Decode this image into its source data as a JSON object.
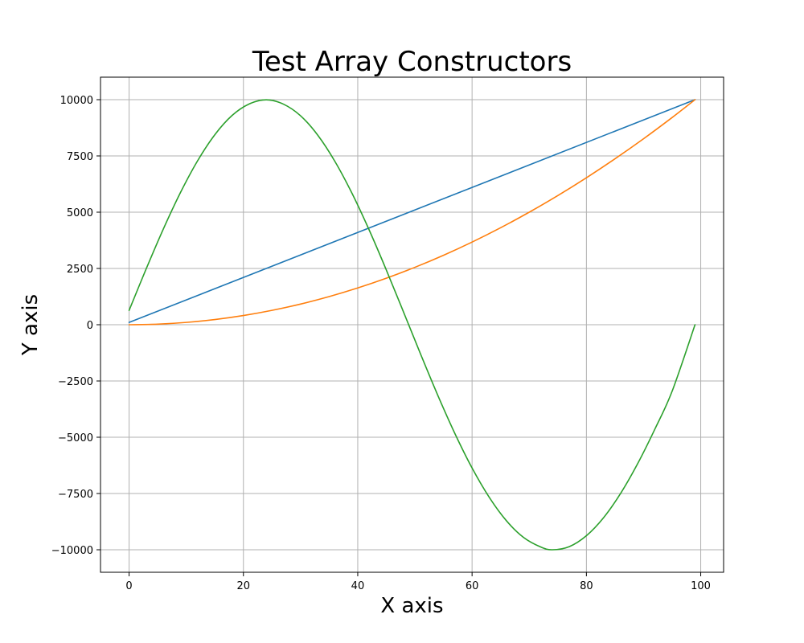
{
  "chart_data": {
    "type": "line",
    "title": "Test Array Constructors",
    "xlabel": "X axis",
    "ylabel": "Y axis",
    "xlim": [
      -5,
      104
    ],
    "ylim": [
      -11000,
      11000
    ],
    "xticks": [
      0,
      20,
      40,
      60,
      80,
      100
    ],
    "yticks": [
      10000,
      7500,
      5000,
      2500,
      0,
      -2500,
      -5000,
      -7500,
      -10000
    ],
    "ytick_labels": [
      "10000",
      "7500",
      "5000",
      "2500",
      "0",
      "−2500",
      "−5000",
      "−7500",
      "−10000"
    ],
    "xtick_labels": [
      "0",
      "20",
      "40",
      "60",
      "80",
      "100"
    ],
    "grid": true,
    "series": [
      {
        "color": "#1f77b4",
        "x": [
          0,
          99
        ],
        "y": [
          101,
          10000
        ]
      },
      {
        "color": "#ff7f0e",
        "x": [
          0,
          5,
          10,
          15,
          20,
          25,
          30,
          35,
          40,
          45,
          50,
          55,
          60,
          65,
          70,
          75,
          80,
          85,
          90,
          95,
          99
        ],
        "y": [
          0,
          26,
          102,
          230,
          408,
          638,
          918,
          1250,
          1632,
          2066,
          2551,
          3086,
          3673,
          4311,
          5000,
          5739,
          6530,
          7372,
          8264,
          9208,
          10000
        ]
      },
      {
        "color": "#2ca02c",
        "x": [
          0,
          3,
          6,
          9,
          12,
          15,
          18,
          21,
          24,
          27,
          30,
          33,
          36,
          39,
          42,
          45,
          48,
          51,
          54,
          57,
          60,
          63,
          66,
          69,
          72,
          74,
          77,
          80,
          83,
          86,
          89,
          92,
          95,
          99
        ],
        "y": [
          635,
          2487,
          4258,
          5878,
          7290,
          8443,
          9294,
          9808,
          9995,
          9802,
          9284,
          8424,
          7260,
          5838,
          4210,
          2433,
          570,
          -1311,
          -3135,
          -4839,
          -6367,
          -7668,
          -8708,
          -9450,
          -9876,
          -10000,
          -9860,
          -9375,
          -8575,
          -7489,
          -6157,
          -4627,
          -2951,
          -1
        ]
      }
    ]
  }
}
